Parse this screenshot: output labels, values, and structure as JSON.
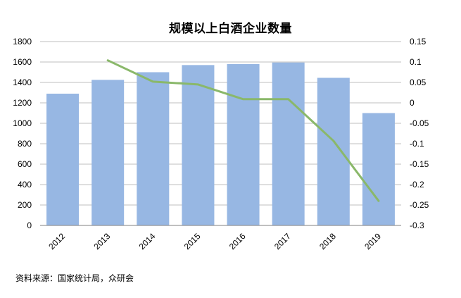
{
  "source": "资料来源：国家统计局，众研会",
  "chart_data": {
    "type": "bar",
    "title": "规模以上白酒企业数量",
    "categories": [
      "2012",
      "2013",
      "2014",
      "2015",
      "2016",
      "2017",
      "2018",
      "2019"
    ],
    "series": [
      {
        "type": "bar",
        "values": [
          1290,
          1425,
          1500,
          1570,
          1580,
          1595,
          1445,
          1100
        ],
        "axis": "left",
        "color": "#97b7e3"
      },
      {
        "type": "line",
        "x": [
          "2013",
          "2014",
          "2015",
          "2016",
          "2017",
          "2018",
          "2019"
        ],
        "values": [
          0.104,
          0.052,
          0.045,
          0.009,
          0.009,
          -0.093,
          -0.24
        ],
        "axis": "right",
        "color": "#8ab86a"
      }
    ],
    "y_left": {
      "min": 0,
      "max": 1800,
      "ticks": [
        "0",
        "200",
        "400",
        "600",
        "800",
        "1000",
        "1200",
        "1400",
        "1600",
        "1800"
      ]
    },
    "y_right": {
      "min": -0.3,
      "max": 0.15,
      "ticks": [
        "-0.3",
        "-0.25",
        "-0.2",
        "-0.15",
        "-0.1",
        "-0.05",
        "0",
        "0.05",
        "0.1",
        "0.15"
      ]
    },
    "grid": true,
    "legend": "none"
  }
}
